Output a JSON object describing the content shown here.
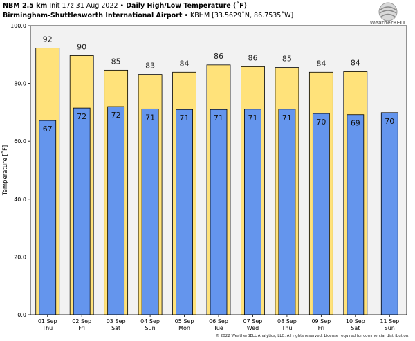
{
  "header": {
    "model": "NBM 2.5 km",
    "init": "Init 17z 31 Aug 2022",
    "bullet": "•",
    "product": "Daily High/Low Temperature (˚F)",
    "station_name": "Birmingham-Shuttlesworth International Airport",
    "station_info": "KBHM [33.5629˚N, 86.7535˚W]"
  },
  "logo": {
    "text": "WeatherBELL"
  },
  "copyright": "© 2022 WeatherBELL Analytics, LLC. All rights reserved. License required for commercial distribution.",
  "colors": {
    "high": "#FFE27A",
    "low": "#6495ED",
    "plot_bg": "#F2F2F2",
    "bar_edge": "#000000"
  },
  "chart_data": {
    "type": "bar",
    "title": "Daily High/Low Temperature (˚F)",
    "ylabel": "Temperature [˚F]",
    "xlabel": "",
    "ylim": [
      0,
      100
    ],
    "yticks": [
      0,
      20,
      40,
      60,
      80,
      100
    ],
    "ytick_labels": [
      "0.0",
      "20.0",
      "40.0",
      "60.0",
      "80.0",
      "100.0"
    ],
    "grid": false,
    "categories": [
      {
        "date": "01 Sep",
        "day": "Thu"
      },
      {
        "date": "02 Sep",
        "day": "Fri"
      },
      {
        "date": "03 Sep",
        "day": "Sat"
      },
      {
        "date": "04 Sep",
        "day": "Sun"
      },
      {
        "date": "05 Sep",
        "day": "Mon"
      },
      {
        "date": "06 Sep",
        "day": "Tue"
      },
      {
        "date": "07 Sep",
        "day": "Wed"
      },
      {
        "date": "08 Sep",
        "day": "Thu"
      },
      {
        "date": "09 Sep",
        "day": "Fri"
      },
      {
        "date": "10 Sep",
        "day": "Sat"
      },
      {
        "date": "11 Sep",
        "day": "Sun"
      }
    ],
    "series": [
      {
        "key": "high",
        "values": [
          92,
          90,
          85,
          83,
          84,
          86,
          86,
          85,
          84,
          84,
          null
        ],
        "bar_values": [
          92.2,
          89.6,
          84.6,
          83.1,
          83.9,
          86.4,
          85.8,
          85.5,
          83.9,
          84.1,
          null
        ],
        "labels": [
          "92",
          "90",
          "85",
          "83",
          "84",
          "86",
          "86",
          "85",
          "84",
          "84",
          ""
        ]
      },
      {
        "key": "low",
        "values": [
          67,
          72,
          72,
          71,
          71,
          71,
          71,
          71,
          70,
          69,
          70
        ],
        "bar_values": [
          67.2,
          71.5,
          72.0,
          71.2,
          71.0,
          71.0,
          71.1,
          71.1,
          69.6,
          69.2,
          69.9
        ],
        "labels": [
          "67",
          "72",
          "72",
          "71",
          "71",
          "71",
          "71",
          "71",
          "70",
          "69",
          "70"
        ]
      }
    ]
  }
}
